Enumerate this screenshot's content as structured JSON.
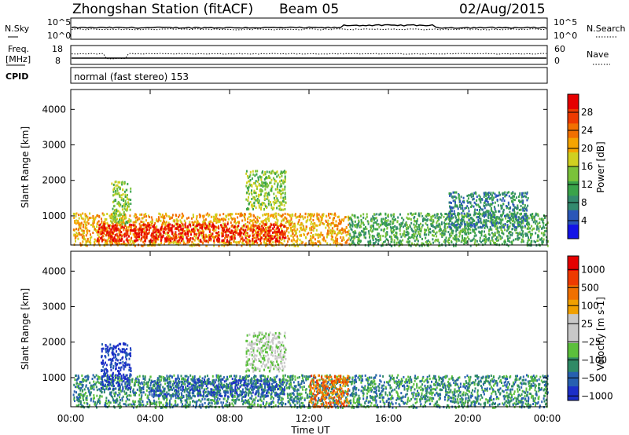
{
  "header": {
    "station": "Zhongshan Station (fitACF)",
    "beam": "Beam 05",
    "date": "02/Aug/2015"
  },
  "top_panels": {
    "nsky_label": "N.Sky",
    "nsky_ticks": [
      "10^5",
      "10^0"
    ],
    "nsearch_label": "N.Search",
    "nsearch_ticks": [
      "10^5",
      "10^0"
    ],
    "freq_label_1": "Freq.",
    "freq_label_2": "[MHz]",
    "freq_ticks": [
      "18",
      "8"
    ],
    "nave_label": "Nave",
    "nave_ticks": [
      "60",
      "0"
    ],
    "cpid_label": "CPID",
    "cpid_text": "normal (fast stereo) 153"
  },
  "chart_data": [
    {
      "type": "heatmap",
      "name": "power-panel",
      "xlabel": "Time UT",
      "ylabel": "Slant Range [km]",
      "x_ticks": [
        "00:00",
        "04:00",
        "08:00",
        "12:00",
        "16:00",
        "20:00",
        "00:00"
      ],
      "xlim_hours": [
        0,
        24
      ],
      "y_ticks": [
        1000,
        2000,
        3000,
        4000
      ],
      "ylim": [
        180,
        4560
      ],
      "colorbar": {
        "label": "Power [dB]",
        "ticks": [
          "4",
          "8",
          "12",
          "16",
          "20",
          "24",
          "28"
        ],
        "range": [
          0,
          30
        ],
        "colors": [
          "#1313e6",
          "#2a56b8",
          "#338a6e",
          "#3aa34a",
          "#7ac23a",
          "#d0d020",
          "#f5a400",
          "#f27000",
          "#ee3a00",
          "#e60000"
        ]
      },
      "regions": [
        {
          "t": [
            0.1,
            14.0
          ],
          "r": [
            180,
            1100
          ],
          "level": 6
        },
        {
          "t": [
            1.3,
            10.8
          ],
          "r": [
            300,
            800
          ],
          "level": 9
        },
        {
          "t": [
            2.0,
            3.0
          ],
          "r": [
            800,
            2000
          ],
          "level": 4
        },
        {
          "t": [
            8.8,
            10.8
          ],
          "r": [
            1200,
            2300
          ],
          "level": 4
        },
        {
          "t": [
            14.0,
            24.0
          ],
          "r": [
            180,
            1100
          ],
          "level": 3
        },
        {
          "t": [
            19.0,
            23.0
          ],
          "r": [
            700,
            1700
          ],
          "level": 2
        }
      ]
    },
    {
      "type": "heatmap",
      "name": "velocity-panel",
      "xlabel": "Time UT",
      "ylabel": "Slant Range [km]",
      "x_ticks": [
        "00:00",
        "04:00",
        "08:00",
        "12:00",
        "16:00",
        "20:00",
        "00:00"
      ],
      "xlim_hours": [
        0,
        24
      ],
      "y_ticks": [
        1000,
        2000,
        3000,
        4000
      ],
      "ylim": [
        180,
        4560
      ],
      "colorbar": {
        "label": "Velocity [m s-1]",
        "ticks": [
          "1000",
          "500",
          "100",
          "25",
          "−25",
          "−100",
          "−500",
          "−1000"
        ],
        "range": [
          -1000,
          1000
        ],
        "colors": [
          "#1c2fc8",
          "#2760b0",
          "#2f8a66",
          "#5bbf3c",
          "#c8c8c8",
          "#c8c8c8",
          "#f0a000",
          "#f07000",
          "#ee3a00",
          "#e60000"
        ]
      },
      "regions": [
        {
          "t": [
            0.1,
            14.0
          ],
          "r": [
            180,
            1100
          ],
          "level": 2
        },
        {
          "t": [
            1.5,
            3.0
          ],
          "r": [
            700,
            2000
          ],
          "level": 0
        },
        {
          "t": [
            4.0,
            10.8
          ],
          "r": [
            500,
            1000
          ],
          "level": 1
        },
        {
          "t": [
            8.8,
            10.8
          ],
          "r": [
            1200,
            2300
          ],
          "level": 4
        },
        {
          "t": [
            12.0,
            14.0
          ],
          "r": [
            180,
            1100
          ],
          "level": 7
        },
        {
          "t": [
            14.0,
            24.0
          ],
          "r": [
            180,
            1100
          ],
          "level": 2
        }
      ]
    }
  ]
}
